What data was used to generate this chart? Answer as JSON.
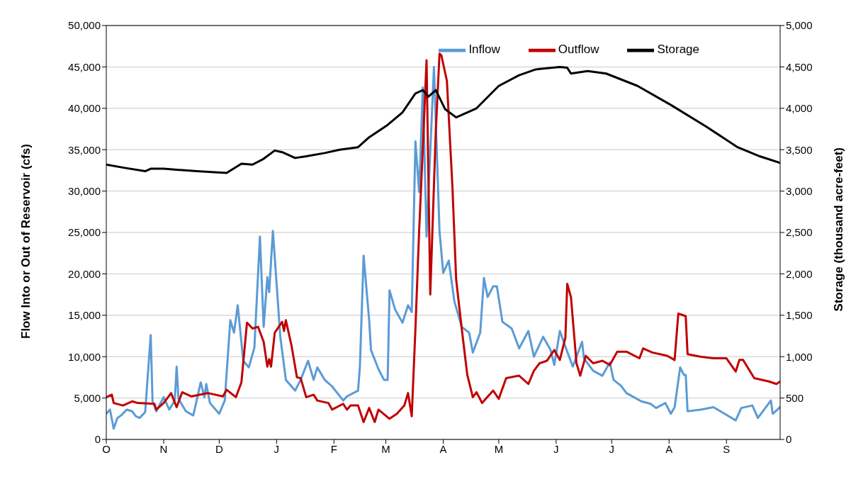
{
  "chart_data": {
    "type": "line",
    "ylabel": "Flow Into or Out of Reservoir (cfs)",
    "y2label": "Storage (thousand acre-feet)",
    "categories": [
      "O",
      null,
      null,
      null,
      null,
      null,
      null,
      null,
      null,
      null,
      null,
      null,
      null,
      null,
      null,
      null,
      null,
      null,
      null,
      null,
      null,
      null,
      null,
      null,
      null,
      null,
      null,
      null,
      null,
      null,
      null,
      "N",
      null,
      null,
      null,
      null,
      null,
      null,
      null,
      null,
      null,
      null,
      null,
      null,
      null,
      null,
      null,
      null,
      null,
      null,
      null,
      null,
      null,
      null,
      null,
      null,
      null,
      null,
      null,
      null,
      null,
      "D",
      null,
      null,
      null,
      null,
      null,
      null,
      null,
      null,
      null,
      null,
      null,
      null,
      null,
      null,
      null,
      null,
      null,
      null,
      null,
      null,
      null,
      null,
      null,
      null,
      null,
      null,
      null,
      null,
      null,
      null,
      "J",
      null,
      null,
      null,
      null,
      null,
      null,
      null,
      null,
      null,
      null,
      null,
      null,
      null,
      null,
      null,
      null,
      null,
      null,
      null,
      null,
      null,
      null,
      null,
      null,
      null,
      null,
      null,
      null,
      null,
      null,
      "F",
      null,
      null,
      null,
      null,
      null,
      null,
      null,
      null,
      null,
      null,
      null,
      null,
      null,
      null,
      null,
      null,
      null,
      null,
      null,
      null,
      null,
      null,
      null,
      null,
      null,
      null,
      null,
      "M",
      null,
      null,
      null,
      null,
      null,
      null,
      null,
      null,
      null,
      null,
      null,
      null,
      null,
      null,
      null,
      null,
      null,
      null,
      null,
      null,
      null,
      null,
      null,
      null,
      null,
      null,
      null,
      null,
      null,
      null,
      "A",
      null,
      null,
      null,
      null,
      null,
      null,
      null,
      null,
      null,
      null,
      null,
      null,
      null,
      null,
      null,
      null,
      null,
      null,
      null,
      null,
      null,
      null,
      null,
      null,
      null,
      null,
      null,
      null,
      null,
      "M",
      null,
      null,
      null,
      null,
      null,
      null,
      null,
      null,
      null,
      null,
      null,
      null,
      null,
      null,
      null,
      null,
      null,
      null,
      null,
      null,
      null,
      null,
      null,
      null,
      null,
      null,
      null,
      null,
      null,
      null,
      "J",
      null,
      null,
      null,
      null,
      null,
      null,
      null,
      null,
      null,
      null,
      null,
      null,
      null,
      null,
      null,
      null,
      null,
      null,
      null,
      null,
      null,
      null,
      null,
      null,
      null,
      null,
      null,
      null,
      null,
      "J",
      null,
      null,
      null,
      null,
      null,
      null,
      null,
      null,
      null,
      null,
      null,
      null,
      null,
      null,
      null,
      null,
      null,
      null,
      null,
      null,
      null,
      null,
      null,
      null,
      null,
      null,
      null,
      null,
      null,
      null,
      "A",
      null,
      null,
      null,
      null,
      null,
      null,
      null,
      null,
      null,
      null,
      null,
      null,
      null,
      null,
      null,
      null,
      null,
      null,
      null,
      null,
      null,
      null,
      null,
      null,
      null,
      null,
      null,
      null,
      null,
      null,
      "S",
      null,
      null,
      null,
      null,
      null,
      null,
      null,
      null,
      null,
      null,
      null,
      null,
      null,
      null,
      null,
      null,
      null,
      null,
      null,
      null,
      null,
      null,
      null,
      null,
      null,
      null,
      null,
      null,
      null
    ],
    "ylim": [
      0,
      50000
    ],
    "yticks": [
      {
        "value": 0,
        "label": "0"
      },
      {
        "value": 5000,
        "label": "5,000"
      },
      {
        "value": 10000,
        "label": "10,000"
      },
      {
        "value": 15000,
        "label": "15,000"
      },
      {
        "value": 20000,
        "label": "20,000"
      },
      {
        "value": 25000,
        "label": "25,000"
      },
      {
        "value": 30000,
        "label": "30,000"
      },
      {
        "value": 35000,
        "label": "35,000"
      },
      {
        "value": 40000,
        "label": "40,000"
      },
      {
        "value": 45000,
        "label": "45,000"
      },
      {
        "value": 50000,
        "label": "50,000"
      }
    ],
    "y2lim": [
      0,
      5000
    ],
    "y2ticks": [
      {
        "value": 0,
        "label": "0"
      },
      {
        "value": 500,
        "label": "500"
      },
      {
        "value": 1000,
        "label": "1,000"
      },
      {
        "value": 1500,
        "label": "1,500"
      },
      {
        "value": 2000,
        "label": "2,000"
      },
      {
        "value": 2500,
        "label": "2,500"
      },
      {
        "value": 3000,
        "label": "3,000"
      },
      {
        "value": 3500,
        "label": "3,500"
      },
      {
        "value": 4000,
        "label": "4,000"
      },
      {
        "value": 4500,
        "label": "4,500"
      },
      {
        "value": 5000,
        "label": "5,000"
      }
    ],
    "grid": "y",
    "legend": "top right",
    "marker": "none",
    "line_style": "solid",
    "series": [
      {
        "name": "Inflow",
        "color": "#5b9bd5",
        "values": [
          3100,
          null,
          3600,
          null,
          1300,
          null,
          2600,
          null,
          2900,
          null,
          null,
          3600,
          null,
          null,
          3400,
          null,
          2800,
          null,
          2600,
          null,
          null,
          3300,
          null,
          null,
          12600,
          4600,
          null,
          3400,
          null,
          null,
          null,
          5100,
          null,
          null,
          3600,
          null,
          null,
          4700,
          8800,
          4900,
          null,
          null,
          null,
          3400,
          null,
          null,
          null,
          2900,
          null,
          null,
          null,
          6900,
          null,
          5100,
          6700,
          null,
          4400,
          null,
          null,
          null,
          null,
          3100,
          null,
          null,
          4700,
          null,
          null,
          14400,
          null,
          12900,
          null,
          16200,
          null,
          null,
          9500,
          null,
          null,
          8700,
          null,
          null,
          11100,
          null,
          null,
          24500,
          null,
          13600,
          null,
          19600,
          17800,
          null,
          25200,
          null,
          null,
          null,
          12400,
          null,
          null,
          7200,
          null,
          null,
          null,
          null,
          5900,
          null,
          null,
          7200,
          null,
          null,
          null,
          9500,
          null,
          null,
          7200,
          null,
          8700,
          null,
          null,
          null,
          7200,
          null,
          null,
          null,
          6400,
          null,
          null,
          null,
          null,
          null,
          4700,
          null,
          5200,
          null,
          null,
          null,
          null,
          null,
          5900,
          8800,
          null,
          22200,
          null,
          null,
          14400,
          10800,
          null,
          null,
          null,
          8500,
          null,
          null,
          7200,
          null,
          7200,
          18000,
          null,
          null,
          15700,
          null,
          null,
          null,
          14100,
          null,
          null,
          16200,
          null,
          15400,
          null,
          36000,
          null,
          29900,
          null,
          42500,
          null,
          24500,
          null,
          null,
          null,
          45000,
          null,
          null,
          25200,
          null,
          20100,
          null,
          null,
          21600,
          null,
          null,
          16700,
          null,
          null,
          null,
          13600,
          null,
          null,
          null,
          12900,
          null,
          10500,
          null,
          null,
          null,
          12900,
          null,
          19500,
          null,
          17200,
          null,
          null,
          18500,
          null,
          18500,
          null,
          null,
          14200,
          null,
          null,
          null,
          null,
          13400,
          null,
          null,
          null,
          11000,
          null,
          null,
          null,
          null,
          13100,
          null,
          null,
          10000,
          null,
          null,
          null,
          null,
          12400,
          null,
          null,
          null,
          10800,
          null,
          9000,
          null,
          null,
          13100,
          null,
          null,
          null,
          10600,
          null,
          null,
          8800,
          null,
          null,
          null,
          null,
          11800,
          9800,
          null,
          null,
          null,
          null,
          8300,
          null,
          null,
          null,
          null,
          7700,
          null,
          null,
          null,
          9300,
          null,
          7200,
          null,
          null,
          null,
          6500,
          null,
          null,
          5600,
          null,
          null,
          null,
          5100,
          null,
          null,
          null,
          4600,
          null,
          null,
          null,
          null,
          4300,
          null,
          null,
          3800,
          null,
          null,
          null,
          null,
          4400,
          null,
          null,
          3100,
          null,
          3900,
          null,
          null,
          8700,
          null,
          7800,
          7800,
          3400,
          null,
          null,
          null,
          null,
          null,
          null,
          3600,
          null,
          null,
          null,
          null,
          null,
          null,
          3900,
          null,
          null,
          null,
          null,
          null,
          3100,
          null,
          null,
          null,
          null,
          null,
          2300,
          null,
          null,
          3800,
          null,
          null,
          null,
          null,
          null,
          4100,
          null,
          null,
          2600,
          null,
          null,
          null,
          null,
          null,
          null,
          4700,
          3100,
          null,
          null,
          null,
          3900
        ]
      },
      {
        "name": "Outflow",
        "color": "#c00000",
        "values": [
          5100,
          null,
          null,
          5400,
          4400,
          null,
          null,
          null,
          null,
          4100,
          null,
          null,
          null,
          null,
          4600,
          null,
          null,
          4400,
          null,
          null,
          null,
          null,
          null,
          null,
          null,
          null,
          4300,
          3600,
          null,
          null,
          null,
          4400,
          null,
          null,
          null,
          5600,
          null,
          null,
          3900,
          null,
          null,
          5700,
          null,
          null,
          null,
          null,
          5200,
          null,
          null,
          null,
          null,
          null,
          null,
          null,
          null,
          5600,
          null,
          null,
          null,
          null,
          null,
          null,
          null,
          5200,
          null,
          6000,
          null,
          null,
          null,
          null,
          5100,
          null,
          null,
          6900,
          null,
          null,
          14100,
          null,
          null,
          13400,
          null,
          null,
          13600,
          null,
          null,
          11800,
          null,
          8800,
          9700,
          8800,
          null,
          12900,
          null,
          null,
          null,
          14200,
          13100,
          14400,
          null,
          null,
          11400,
          null,
          null,
          7500,
          null,
          7400,
          null,
          null,
          5100,
          null,
          null,
          null,
          5400,
          null,
          4700,
          null,
          null,
          null,
          null,
          null,
          4400,
          null,
          3600,
          null,
          null,
          null,
          null,
          null,
          4300,
          null,
          3600,
          null,
          4100,
          null,
          null,
          null,
          4100,
          null,
          null,
          2100,
          null,
          null,
          3800,
          null,
          null,
          2100,
          null,
          3600,
          null,
          null,
          null,
          null,
          null,
          2500,
          null,
          null,
          null,
          3100,
          null,
          null,
          null,
          4100,
          null,
          5600,
          null,
          2800,
          null,
          13400,
          null,
          25200,
          null,
          35300,
          null,
          45800,
          null,
          17500,
          null,
          null,
          37300,
          null,
          46600,
          46400,
          null,
          null,
          43300,
          null,
          null,
          30400,
          null,
          19300,
          null,
          null,
          13400,
          null,
          null,
          7800,
          null,
          null,
          5100,
          null,
          5700,
          null,
          null,
          4400,
          null,
          null,
          null,
          null,
          null,
          5900,
          null,
          null,
          4900,
          null,
          null,
          null,
          7400,
          null,
          null,
          null,
          null,
          null,
          null,
          7700,
          null,
          null,
          null,
          null,
          6700,
          null,
          null,
          8300,
          null,
          null,
          9200,
          null,
          null,
          null,
          9500,
          null,
          null,
          null,
          10800,
          null,
          null,
          9600,
          null,
          null,
          12300,
          18800,
          null,
          17200,
          null,
          null,
          9200,
          null,
          7700,
          null,
          null,
          10100,
          null,
          null,
          null,
          9200,
          null,
          null,
          null,
          null,
          9500,
          null,
          null,
          null,
          9000,
          null,
          null,
          null,
          10600,
          null,
          null,
          null,
          null,
          10600,
          null,
          null,
          null,
          null,
          null,
          null,
          9800,
          null,
          11000,
          null,
          null,
          null,
          null,
          10500,
          null,
          null,
          null,
          null,
          null,
          null,
          null,
          10100,
          null,
          null,
          null,
          9600,
          null,
          15200,
          null,
          null,
          null,
          14900,
          10300,
          null,
          null,
          null,
          null,
          null,
          null,
          10000,
          null,
          null,
          null,
          null,
          null,
          null,
          9800,
          null,
          null,
          null,
          null,
          null,
          null,
          9800,
          null,
          null,
          null,
          null,
          8200,
          null,
          9600,
          null,
          9600,
          null,
          null,
          null,
          null,
          null,
          7400,
          null,
          null,
          null,
          null,
          null,
          null,
          null,
          7000,
          null,
          null,
          null,
          6700,
          null,
          7000
        ]
      },
      {
        "name": "Storage",
        "color": "#000000",
        "axis": "y2",
        "values": [
          3320,
          null,
          null,
          null,
          null,
          null,
          null,
          null,
          null,
          null,
          3280,
          null,
          null,
          null,
          null,
          null,
          null,
          null,
          null,
          null,
          null,
          3240,
          null,
          null,
          3270,
          null,
          null,
          null,
          null,
          null,
          null,
          3270,
          null,
          null,
          null,
          null,
          null,
          null,
          null,
          null,
          null,
          null,
          null,
          null,
          null,
          null,
          null,
          null,
          null,
          3240,
          null,
          null,
          null,
          null,
          null,
          null,
          null,
          null,
          null,
          null,
          null,
          null,
          null,
          null,
          null,
          3220,
          null,
          null,
          null,
          null,
          null,
          null,
          null,
          3330,
          null,
          null,
          null,
          null,
          null,
          3320,
          null,
          null,
          null,
          null,
          null,
          3390,
          null,
          null,
          null,
          null,
          null,
          3490,
          null,
          null,
          null,
          3470,
          null,
          null,
          null,
          null,
          null,
          null,
          3400,
          null,
          null,
          null,
          null,
          null,
          3420,
          null,
          null,
          null,
          null,
          null,
          null,
          null,
          null,
          null,
          3460,
          null,
          null,
          null,
          null,
          null,
          null,
          null,
          3500,
          null,
          null,
          null,
          null,
          null,
          null,
          null,
          null,
          null,
          3530,
          null,
          null,
          null,
          null,
          null,
          3650,
          null,
          null,
          null,
          null,
          null,
          null,
          null,
          null,
          null,
          3800,
          null,
          null,
          null,
          null,
          null,
          null,
          null,
          3950,
          null,
          null,
          null,
          null,
          null,
          null,
          4180,
          null,
          null,
          null,
          4220,
          null,
          null,
          4140,
          null,
          null,
          null,
          4220,
          null,
          null,
          null,
          null,
          3990,
          null,
          null,
          null,
          null,
          null,
          3890,
          null,
          null,
          null,
          null,
          null,
          null,
          null,
          null,
          null,
          null,
          4000,
          null,
          null,
          null,
          null,
          null,
          null,
          null,
          null,
          null,
          null,
          null,
          4270,
          null,
          null,
          null,
          null,
          null,
          null,
          null,
          null,
          null,
          null,
          4400,
          null,
          null,
          null,
          null,
          null,
          null,
          null,
          null,
          4470,
          null,
          null,
          null,
          null,
          null,
          null,
          null,
          null,
          null,
          null,
          null,
          null,
          4500,
          null,
          null,
          null,
          4490,
          null,
          4420,
          null,
          null,
          null,
          null,
          null,
          null,
          null,
          null,
          4450,
          null,
          null,
          null,
          null,
          null,
          null,
          null,
          null,
          null,
          4420,
          null,
          null,
          null,
          null,
          null,
          null,
          null,
          null,
          null,
          null,
          null,
          null,
          null,
          null,
          null,
          null,
          4270,
          null,
          null,
          null,
          null,
          null,
          null,
          null,
          null,
          null,
          null,
          null,
          null,
          null,
          null,
          null,
          null,
          null,
          4040,
          null,
          null,
          null,
          null,
          null,
          null,
          null,
          null,
          null,
          null,
          null,
          null,
          null,
          null,
          null,
          null,
          null,
          null,
          3780,
          null,
          null,
          null,
          null,
          null,
          null,
          null,
          null,
          null,
          null,
          null,
          null,
          null,
          null,
          null,
          null,
          3530,
          null,
          null,
          null,
          null,
          null,
          null,
          null,
          null,
          null,
          null,
          null,
          3420,
          null,
          null,
          null,
          null,
          null,
          null,
          null,
          null,
          null,
          null,
          3340
        ]
      }
    ]
  }
}
